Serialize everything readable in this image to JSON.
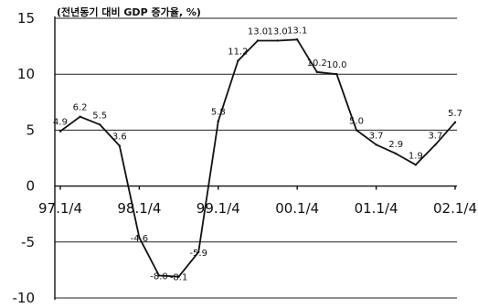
{
  "chart_data": {
    "type": "line",
    "title": "(전년동기 대비 GDP 증가율, %)",
    "xlabel": "",
    "ylabel": "",
    "ylim": [
      -10,
      15
    ],
    "yticks": [
      15,
      10,
      5,
      0,
      -5,
      -10
    ],
    "x_tick_labels": [
      "97.1/4",
      "98.1/4",
      "99.1/4",
      "00.1/4",
      "01.1/4",
      "02.1/4"
    ],
    "grid": true,
    "series": [
      {
        "values": [
          4.9,
          6.2,
          5.5,
          3.6,
          -4.6,
          -8.0,
          -8.1,
          -5.9,
          5.8,
          11.2,
          13.0,
          13.0,
          13.1,
          10.2,
          10.0,
          5.0,
          3.7,
          2.9,
          1.9,
          3.7,
          5.7
        ],
        "labels": [
          "4.9",
          "6.2",
          "5.5",
          "3.6",
          "-4.6",
          "-8.0",
          "-8.1",
          "-5.9",
          "5.8",
          "11.2",
          "13.0",
          "13.0",
          "13.1",
          "10.2",
          "10.0",
          "5.0",
          "3.7",
          "2.9",
          "1.9",
          "3.7",
          "5.7"
        ]
      }
    ]
  }
}
